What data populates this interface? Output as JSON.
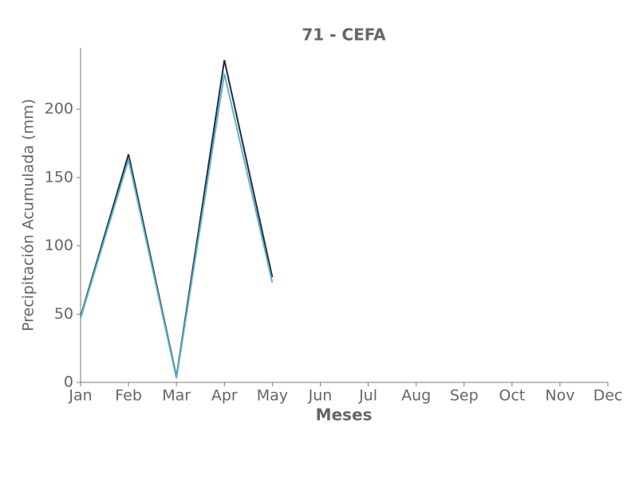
{
  "chart_data": {
    "type": "line",
    "title": "71 - CEFA",
    "x_label": "Meses",
    "y_label": "Precipitación Acumulada (mm)",
    "categories": [
      "Jan",
      "Feb",
      "Mar",
      "Apr",
      "May",
      "Jun",
      "Jul",
      "Aug",
      "Sep",
      "Oct",
      "Nov",
      "Dec"
    ],
    "series": [
      {
        "color": "#1f2a44",
        "values": [
          48,
          167,
          4,
          236,
          77,
          null,
          null,
          null,
          null,
          null,
          null,
          null
        ]
      },
      {
        "color": "#5bb5c8",
        "values": [
          47,
          163,
          3,
          226,
          73,
          null,
          null,
          null,
          null,
          null,
          null,
          null
        ]
      }
    ],
    "ylim": [
      0,
      245
    ],
    "yticks": [
      0,
      50,
      100,
      150,
      200
    ],
    "grid": false
  }
}
